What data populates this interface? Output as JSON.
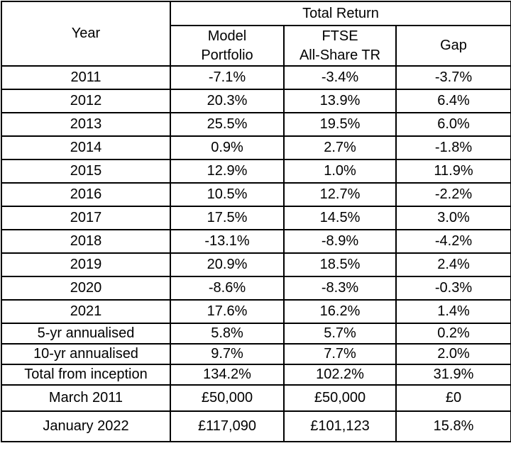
{
  "colors": {
    "positive_bg": "#b7e1cd",
    "negative_bg": "#f4c7c3",
    "plain_bg": "#ffffff",
    "border": "#000000",
    "text": "#000000"
  },
  "header": {
    "year_label": "Year",
    "group_label": "Total Return",
    "model_portfolio_label": "Model\nPortfolio",
    "ftse_label": "FTSE\nAll-Share TR",
    "gap_label": "Gap"
  },
  "rows": [
    {
      "label": "2011",
      "cells": [
        {
          "text": "-7.1%",
          "bg": "negative"
        },
        {
          "text": "-3.4%",
          "bg": "negative"
        },
        {
          "text": "-3.7%",
          "bg": "negative"
        }
      ]
    },
    {
      "label": "2012",
      "cells": [
        {
          "text": "20.3%",
          "bg": "positive"
        },
        {
          "text": "13.9%",
          "bg": "positive"
        },
        {
          "text": "6.4%",
          "bg": "positive"
        }
      ]
    },
    {
      "label": "2013",
      "cells": [
        {
          "text": "25.5%",
          "bg": "positive"
        },
        {
          "text": "19.5%",
          "bg": "positive"
        },
        {
          "text": "6.0%",
          "bg": "positive"
        }
      ]
    },
    {
      "label": "2014",
      "cells": [
        {
          "text": "0.9%",
          "bg": "positive"
        },
        {
          "text": "2.7%",
          "bg": "positive"
        },
        {
          "text": "-1.8%",
          "bg": "negative"
        }
      ]
    },
    {
      "label": "2015",
      "cells": [
        {
          "text": "12.9%",
          "bg": "positive"
        },
        {
          "text": "1.0%",
          "bg": "positive"
        },
        {
          "text": "11.9%",
          "bg": "positive"
        }
      ]
    },
    {
      "label": "2016",
      "cells": [
        {
          "text": "10.5%",
          "bg": "positive"
        },
        {
          "text": "12.7%",
          "bg": "positive"
        },
        {
          "text": "-2.2%",
          "bg": "negative"
        }
      ]
    },
    {
      "label": "2017",
      "cells": [
        {
          "text": "17.5%",
          "bg": "positive"
        },
        {
          "text": "14.5%",
          "bg": "positive"
        },
        {
          "text": "3.0%",
          "bg": "positive"
        }
      ]
    },
    {
      "label": "2018",
      "cells": [
        {
          "text": "-13.1%",
          "bg": "negative"
        },
        {
          "text": "-8.9%",
          "bg": "negative"
        },
        {
          "text": "-4.2%",
          "bg": "negative"
        }
      ]
    },
    {
      "label": "2019",
      "cells": [
        {
          "text": "20.9%",
          "bg": "positive"
        },
        {
          "text": "18.5%",
          "bg": "positive"
        },
        {
          "text": "2.4%",
          "bg": "positive"
        }
      ]
    },
    {
      "label": "2020",
      "cells": [
        {
          "text": "-8.6%",
          "bg": "negative"
        },
        {
          "text": "-8.3%",
          "bg": "negative"
        },
        {
          "text": "-0.3%",
          "bg": "negative"
        }
      ]
    },
    {
      "label": "2021",
      "cells": [
        {
          "text": "17.6%",
          "bg": "positive"
        },
        {
          "text": "16.2%",
          "bg": "positive"
        },
        {
          "text": "1.4%",
          "bg": "positive"
        }
      ]
    },
    {
      "label": "5-yr annualised",
      "cells": [
        {
          "text": "5.8%",
          "bg": "positive"
        },
        {
          "text": "5.7%",
          "bg": "positive"
        },
        {
          "text": "0.2%",
          "bg": "positive"
        }
      ]
    },
    {
      "label": "10-yr annualised",
      "cells": [
        {
          "text": "9.7%",
          "bg": "positive"
        },
        {
          "text": "7.7%",
          "bg": "positive"
        },
        {
          "text": "2.0%",
          "bg": "positive"
        }
      ]
    },
    {
      "label": "Total from inception",
      "cells": [
        {
          "text": "134.2%",
          "bg": "positive"
        },
        {
          "text": "102.2%",
          "bg": "positive"
        },
        {
          "text": "31.9%",
          "bg": "positive"
        }
      ]
    },
    {
      "label": "March 2011",
      "cells": [
        {
          "text": "£50,000",
          "bg": "plain"
        },
        {
          "text": "£50,000",
          "bg": "plain"
        },
        {
          "text": "£0",
          "bg": "plain"
        }
      ]
    },
    {
      "label": "January 2022",
      "cells": [
        {
          "text": "£117,090",
          "bg": "plain"
        },
        {
          "text": "£101,123",
          "bg": "plain"
        },
        {
          "text": "15.8%",
          "bg": "positive"
        }
      ]
    }
  ],
  "chart_data": {
    "type": "table",
    "title": "Total Return",
    "columns": [
      "Year",
      "Model Portfolio",
      "FTSE All-Share TR",
      "Gap"
    ],
    "categories": [
      "2011",
      "2012",
      "2013",
      "2014",
      "2015",
      "2016",
      "2017",
      "2018",
      "2019",
      "2020",
      "2021",
      "5-yr annualised",
      "10-yr annualised",
      "Total from inception",
      "March 2011",
      "January 2022"
    ],
    "series": [
      {
        "name": "Model Portfolio",
        "values": [
          "-7.1%",
          "20.3%",
          "25.5%",
          "0.9%",
          "12.9%",
          "10.5%",
          "17.5%",
          "-13.1%",
          "20.9%",
          "-8.6%",
          "17.6%",
          "5.8%",
          "9.7%",
          "134.2%",
          "£50,000",
          "£117,090"
        ]
      },
      {
        "name": "FTSE All-Share TR",
        "values": [
          "-3.4%",
          "13.9%",
          "19.5%",
          "2.7%",
          "1.0%",
          "12.7%",
          "14.5%",
          "-8.9%",
          "18.5%",
          "-8.3%",
          "16.2%",
          "5.7%",
          "7.7%",
          "102.2%",
          "£50,000",
          "£101,123"
        ]
      },
      {
        "name": "Gap",
        "values": [
          "-3.7%",
          "6.4%",
          "6.0%",
          "-1.8%",
          "11.9%",
          "-2.2%",
          "3.0%",
          "-4.2%",
          "2.4%",
          "-0.3%",
          "1.4%",
          "0.2%",
          "2.0%",
          "31.9%",
          "£0",
          "15.8%"
        ]
      }
    ],
    "cell_highlight": {
      "positive": "#b7e1cd",
      "negative": "#f4c7c3"
    }
  }
}
